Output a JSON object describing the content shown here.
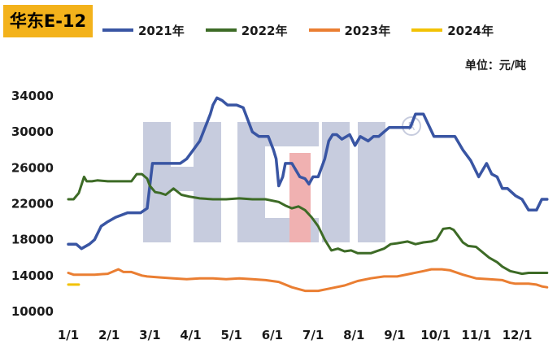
{
  "title": "华东E-12",
  "unit_label": "单位：元/吨",
  "watermark": "HCM",
  "chart_data": {
    "type": "line",
    "title": "华东E-12",
    "xlabel": "",
    "ylabel": "",
    "x_ticks": [
      "1/1",
      "2/1",
      "3/1",
      "4/1",
      "5/1",
      "6/1",
      "7/1",
      "8/1",
      "9/1",
      "10/1",
      "11/1",
      "12/1"
    ],
    "y_ticks": [
      10000,
      14000,
      18000,
      22000,
      26000,
      30000,
      34000
    ],
    "xlim": [
      0,
      366
    ],
    "ylim": [
      10000,
      36000
    ],
    "grid": false,
    "legend_position": "top",
    "series": [
      {
        "name": "2021年",
        "color": "#3955a3",
        "x": [
          0,
          6,
          10,
          16,
          20,
          25,
          30,
          36,
          45,
          50,
          55,
          60,
          64,
          70,
          80,
          85,
          90,
          95,
          100,
          108,
          110,
          113,
          117,
          121,
          128,
          133,
          140,
          145,
          152,
          156,
          158,
          160,
          163,
          165,
          170,
          176,
          180,
          183,
          186,
          190,
          195,
          198,
          201,
          204,
          208,
          214,
          218,
          222,
          228,
          232,
          236,
          240,
          244,
          248,
          252,
          256,
          260,
          264,
          270,
          278,
          282,
          286,
          290,
          294,
          300,
          306,
          312,
          318,
          322,
          326,
          330,
          334,
          340,
          345,
          350,
          356,
          360,
          364
        ],
        "y": [
          17500,
          17500,
          17000,
          17500,
          18000,
          19500,
          20000,
          20500,
          21000,
          21000,
          21000,
          21500,
          26500,
          26500,
          26500,
          26500,
          27000,
          28000,
          29000,
          32000,
          33000,
          33800,
          33500,
          33000,
          33000,
          32700,
          30000,
          29500,
          29500,
          28000,
          27000,
          24000,
          25000,
          26500,
          26500,
          25000,
          24800,
          24200,
          25000,
          25000,
          27000,
          29000,
          29700,
          29700,
          29200,
          29700,
          28500,
          29500,
          29000,
          29500,
          29500,
          30000,
          30500,
          30500,
          30500,
          30500,
          30500,
          32000,
          32000,
          29500,
          29500,
          29500,
          29500,
          29500,
          28000,
          26800,
          25000,
          26500,
          25300,
          25000,
          23700,
          23700,
          22900,
          22500,
          21300,
          21300,
          22500,
          22500
        ]
      },
      {
        "name": "2022年",
        "color": "#3d6b26",
        "x": [
          0,
          4,
          8,
          12,
          14,
          18,
          22,
          30,
          40,
          48,
          52,
          56,
          60,
          62,
          66,
          70,
          74,
          80,
          86,
          92,
          100,
          110,
          120,
          130,
          140,
          150,
          160,
          165,
          170,
          175,
          180,
          185,
          190,
          195,
          200,
          205,
          210,
          215,
          220,
          230,
          240,
          245,
          250,
          258,
          264,
          270,
          276,
          280,
          285,
          290,
          293,
          296,
          300,
          304,
          310,
          320,
          326,
          330,
          336,
          345,
          350,
          356,
          360,
          364
        ],
        "y": [
          22500,
          22500,
          23200,
          25000,
          24500,
          24500,
          24600,
          24500,
          24500,
          24500,
          25300,
          25300,
          24800,
          24000,
          23300,
          23200,
          23000,
          23700,
          23000,
          22800,
          22600,
          22500,
          22500,
          22600,
          22500,
          22500,
          22200,
          21800,
          21500,
          21700,
          21300,
          20500,
          19500,
          18000,
          16800,
          17000,
          16700,
          16800,
          16500,
          16500,
          17000,
          17500,
          17600,
          17800,
          17500,
          17700,
          17800,
          18000,
          19200,
          19300,
          19100,
          18500,
          17700,
          17300,
          17200,
          16000,
          15500,
          15000,
          14500,
          14200,
          14300,
          14300,
          14300,
          14300
        ]
      },
      {
        "name": "2023年",
        "color": "#ea7e32",
        "x": [
          0,
          4,
          10,
          20,
          30,
          38,
          42,
          48,
          56,
          60,
          70,
          80,
          90,
          100,
          110,
          120,
          130,
          140,
          150,
          160,
          170,
          180,
          190,
          200,
          210,
          220,
          230,
          240,
          250,
          260,
          270,
          276,
          280,
          284,
          290,
          300,
          310,
          320,
          330,
          336,
          340,
          350,
          356,
          360,
          364
        ],
        "y": [
          14300,
          14100,
          14100,
          14100,
          14200,
          14700,
          14400,
          14400,
          14000,
          13900,
          13800,
          13700,
          13600,
          13700,
          13700,
          13600,
          13700,
          13600,
          13500,
          13300,
          12700,
          12300,
          12300,
          12600,
          12900,
          13400,
          13700,
          13900,
          13900,
          14200,
          14500,
          14700,
          14700,
          14700,
          14600,
          14100,
          13700,
          13600,
          13500,
          13200,
          13100,
          13100,
          13000,
          12800,
          12700
        ]
      },
      {
        "name": "2024年",
        "color": "#f2c204",
        "x": [
          0,
          8
        ],
        "y": [
          13000,
          13000
        ]
      }
    ]
  }
}
